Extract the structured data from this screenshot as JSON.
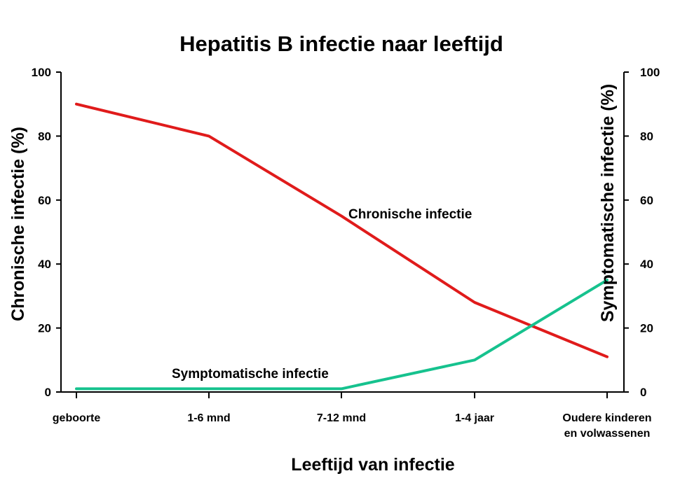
{
  "chart_data": {
    "type": "line",
    "title": "Hepatitis B infectie naar leeftijd",
    "xlabel": "Leeftijd van infectie",
    "ylabel_left": "Chronische infectie (%)",
    "ylabel_right": "Symptomatische infectie (%)",
    "ylim": [
      0,
      100
    ],
    "yticks": [
      0,
      20,
      40,
      60,
      80,
      100
    ],
    "categories": [
      [
        "geboorte"
      ],
      [
        "1-6 mnd"
      ],
      [
        "7-12 mnd"
      ],
      [
        "1-4 jaar"
      ],
      [
        "Oudere kinderen",
        "en volwassenen"
      ]
    ],
    "series": [
      {
        "name": "Chronische infectie",
        "axis": "left",
        "color": "#e01b1b",
        "values": [
          90,
          80,
          55,
          28,
          11
        ]
      },
      {
        "name": "Symptomatische infectie",
        "axis": "right",
        "color": "#16c28e",
        "values": [
          1,
          1,
          1,
          10,
          35
        ]
      }
    ],
    "grid": false
  }
}
